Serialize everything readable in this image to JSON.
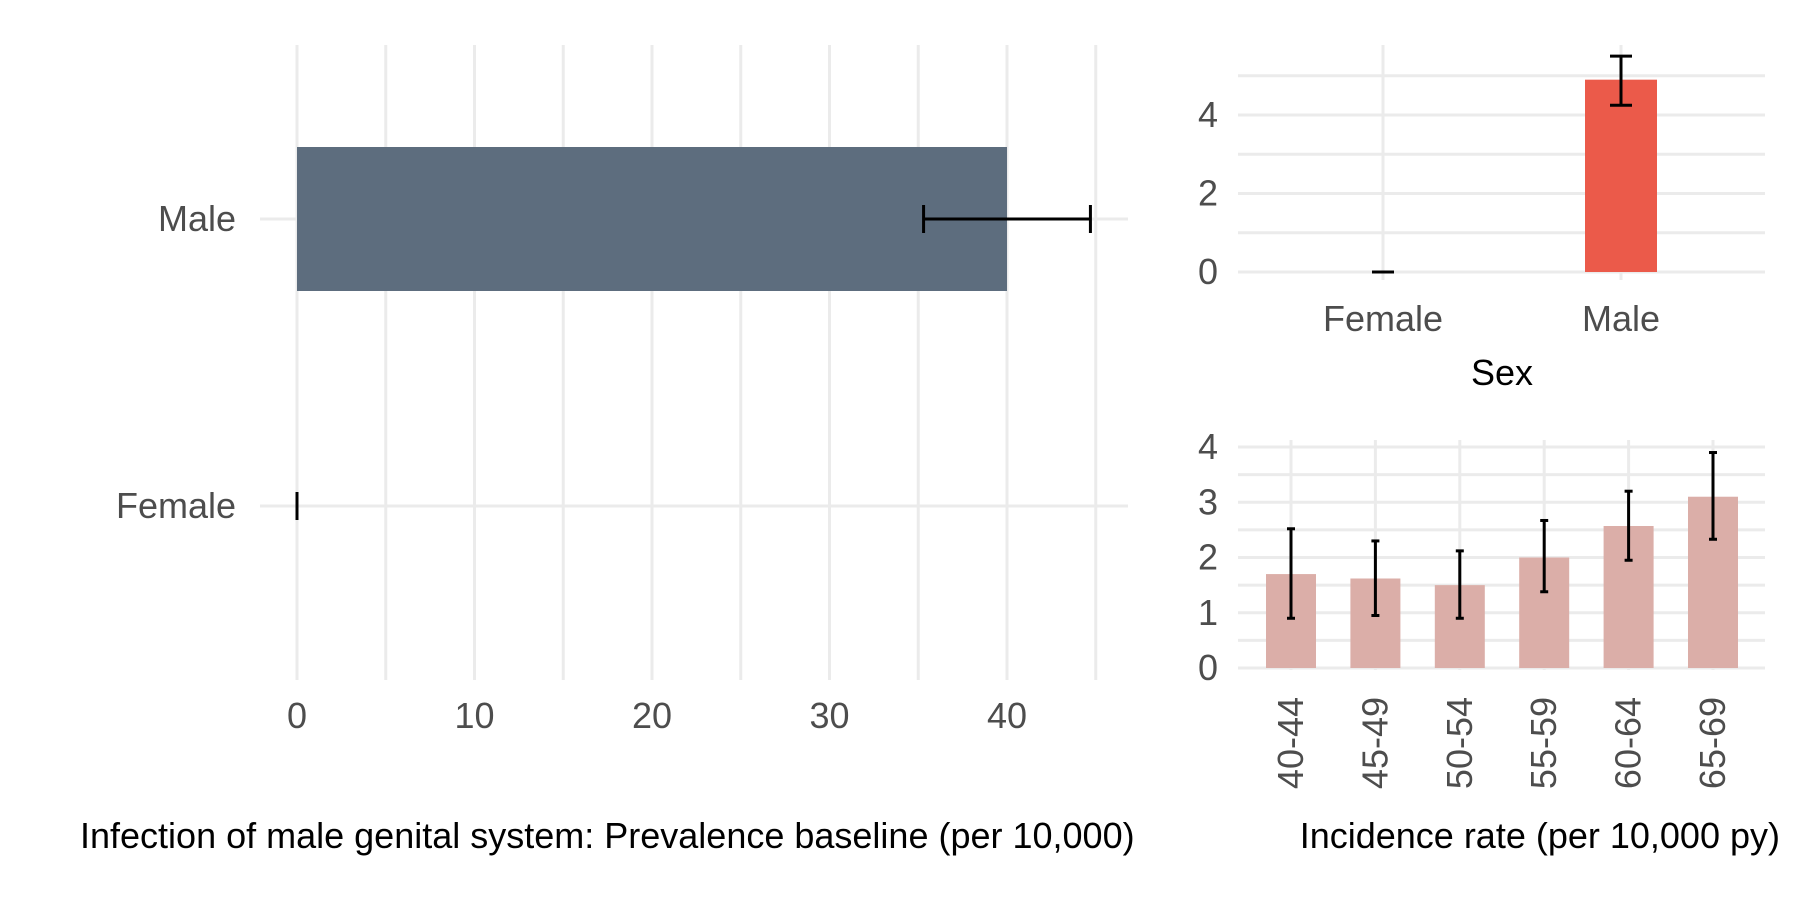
{
  "chart_data": [
    {
      "id": "prevalence",
      "type": "bar",
      "orientation": "horizontal",
      "categories": [
        "Male",
        "Female"
      ],
      "values": [
        40.0,
        0.0
      ],
      "error_low": [
        35.3,
        0.0
      ],
      "error_high": [
        44.7,
        0.0
      ],
      "xlabel": "Infection of male genital system: Prevalence baseline (per 10,000)",
      "ylabel": "",
      "xlim": [
        0,
        45
      ],
      "xticks": [
        0,
        10,
        20,
        30,
        40
      ],
      "xtick_labels": [
        "0",
        "10",
        "20",
        "30",
        "40"
      ],
      "bar_color": "#5d6d7e",
      "grid": true
    },
    {
      "id": "incidence-by-sex",
      "type": "bar",
      "categories": [
        "Female",
        "Male"
      ],
      "values": [
        0.0,
        4.9
      ],
      "error_low": [
        0.0,
        4.25
      ],
      "error_high": [
        0.0,
        5.5
      ],
      "xlabel": "Sex",
      "ylabel": "",
      "ylim": [
        0,
        5.5
      ],
      "yticks": [
        0,
        2,
        4
      ],
      "ytick_labels": [
        "0",
        "2",
        "4"
      ],
      "bar_color": "#eb5a4a",
      "grid": true
    },
    {
      "id": "incidence-by-age",
      "type": "bar",
      "categories": [
        "40-44",
        "45-49",
        "50-54",
        "55-59",
        "60-64",
        "65-69"
      ],
      "values": [
        1.7,
        1.62,
        1.5,
        2.0,
        2.57,
        3.1
      ],
      "error_low": [
        0.9,
        0.95,
        0.9,
        1.38,
        1.95,
        2.33
      ],
      "error_high": [
        2.52,
        2.3,
        2.12,
        2.67,
        3.2,
        3.9
      ],
      "xlabel": "Incidence rate (per 10,000 py)",
      "ylabel": "",
      "ylim": [
        0,
        4
      ],
      "yticks": [
        0,
        1,
        2,
        3,
        4
      ],
      "ytick_labels": [
        "0",
        "1",
        "2",
        "3",
        "4"
      ],
      "bar_color": "#dbaea8",
      "grid": true
    }
  ]
}
